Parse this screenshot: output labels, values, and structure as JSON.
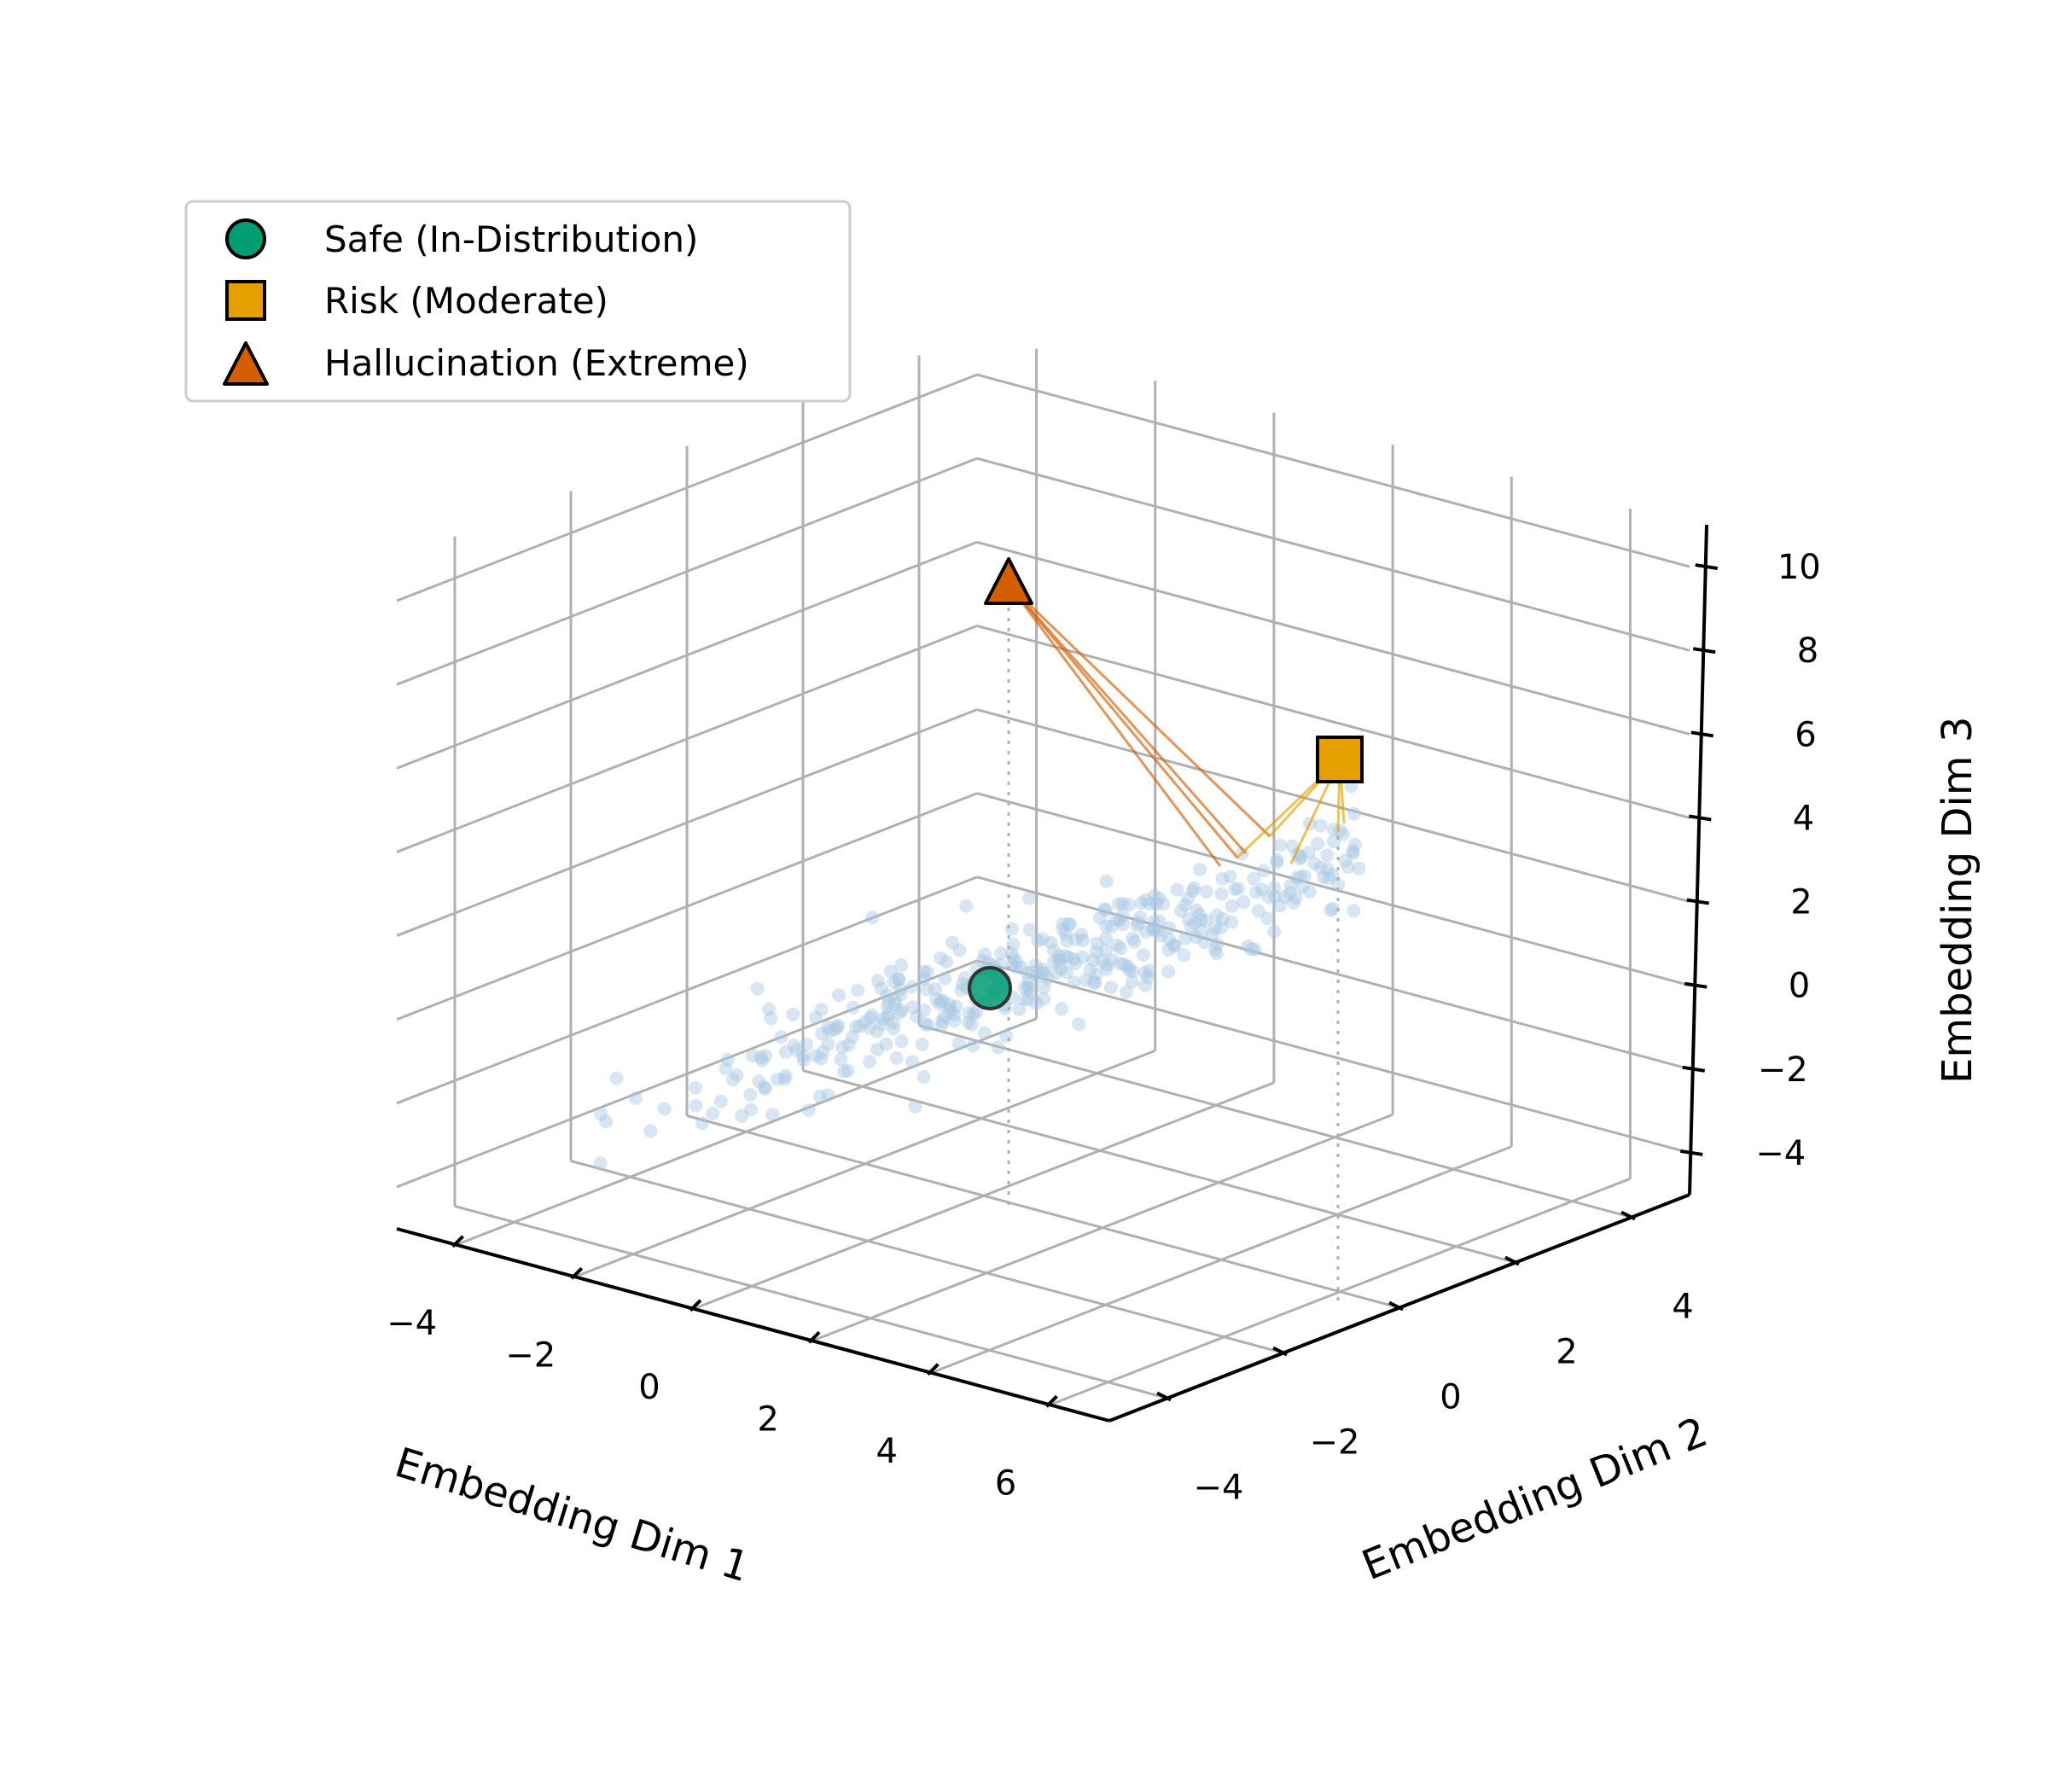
{
  "chart_data": {
    "type": "scatter",
    "projection": "3d",
    "title": "",
    "xlabel": "Embedding Dim 1",
    "ylabel": "Embedding Dim 2",
    "zlabel": "Embedding Dim 3",
    "xlim": [
      -5,
      7
    ],
    "ylim": [
      -5,
      5
    ],
    "zlim": [
      -5,
      11
    ],
    "xticks": [
      -4,
      -2,
      0,
      2,
      4,
      6
    ],
    "yticks": [
      -4,
      -2,
      0,
      2,
      4
    ],
    "zticks": [
      -4,
      -2,
      0,
      2,
      4,
      6,
      8,
      10
    ],
    "grid": true,
    "legend": {
      "placement": "top-left"
    },
    "background_cloud": {
      "color": "#a6c8e3",
      "opacity": 0.45,
      "description": "many points scattered along a diagonal band from low Dim1/Dim3 to high Dim1/Dim3"
    },
    "series": [
      {
        "name": "Safe (In-Distribution)",
        "marker": "circle",
        "color": "#009e73",
        "points": [
          {
            "x": 0,
            "y": 0,
            "z": 0
          }
        ]
      },
      {
        "name": "Risk (Moderate)",
        "marker": "square",
        "color": "#e69f00",
        "points": [
          {
            "x": 5,
            "y": 4,
            "z": 6
          }
        ]
      },
      {
        "name": "Hallucination (Extreme)",
        "marker": "triangle",
        "color": "#d55e00",
        "points": [
          {
            "x": -3,
            "y": 5,
            "z": 10
          }
        ]
      }
    ],
    "connector_lines": [
      {
        "from": "Hallucination (Extreme)",
        "to_cloud_region": "upper cluster",
        "color": "#d55e00",
        "count": 4
      },
      {
        "from": "Risk (Moderate)",
        "to_cloud_region": "upper cluster",
        "color": "#e69f00",
        "count": 5
      }
    ]
  },
  "colors": {
    "grid": "#b0b0b0",
    "axis": "#000000",
    "cloud": "#a6c8e3"
  }
}
